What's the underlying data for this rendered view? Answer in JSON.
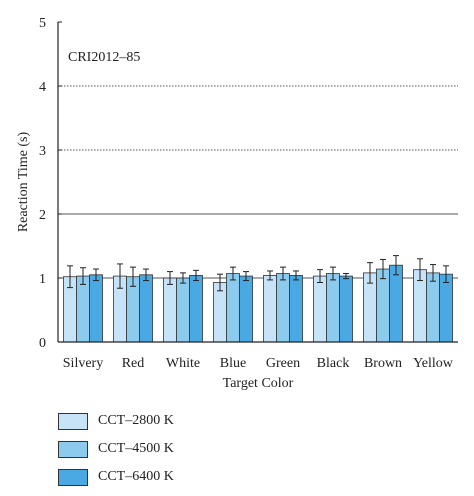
{
  "chart_data": {
    "type": "bar",
    "annotation": "CRI2012–85",
    "xlabel": "Target Color",
    "ylabel": "Reaction Time (s)",
    "ylim": [
      0,
      5
    ],
    "yticks": [
      "0",
      "1",
      "2",
      "3",
      "4",
      "5"
    ],
    "grid": "horizontal dotted at 3 and 4",
    "legend_placement": "bottom-left",
    "categories": [
      "Silvery",
      "Red",
      "White",
      "Blue",
      "Green",
      "Black",
      "Brown",
      "Yellow"
    ],
    "series": [
      {
        "name": "CCT–2800 K",
        "color": "#c6e3f7",
        "values": [
          1.02,
          1.03,
          1.0,
          0.93,
          1.04,
          1.03,
          1.08,
          1.13
        ],
        "errors": [
          0.17,
          0.19,
          0.1,
          0.13,
          0.07,
          0.1,
          0.16,
          0.17
        ]
      },
      {
        "name": "CCT–4500 K",
        "color": "#8ccbee",
        "values": [
          1.03,
          1.02,
          1.0,
          1.07,
          1.07,
          1.07,
          1.14,
          1.08
        ],
        "errors": [
          0.13,
          0.15,
          0.08,
          0.1,
          0.1,
          0.1,
          0.15,
          0.13
        ]
      },
      {
        "name": "CCT–6400 K",
        "color": "#4aa8e2",
        "values": [
          1.05,
          1.05,
          1.04,
          1.03,
          1.04,
          1.03,
          1.2,
          1.06
        ],
        "errors": [
          0.09,
          0.09,
          0.08,
          0.07,
          0.07,
          0.04,
          0.15,
          0.13
        ]
      }
    ]
  }
}
